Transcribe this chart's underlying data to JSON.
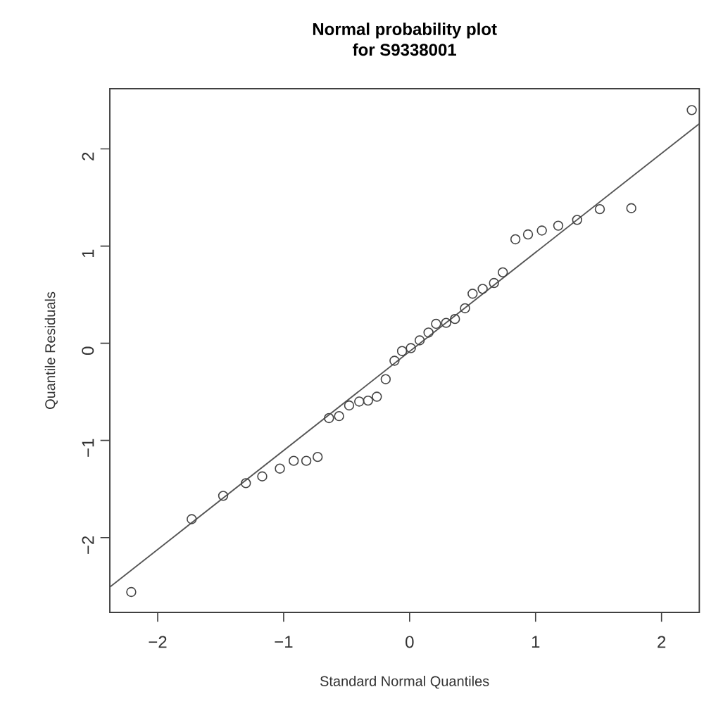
{
  "chart_data": {
    "type": "scatter",
    "title": "Normal probability plot",
    "subtitle": "for S9338001",
    "xlabel": "Standard Normal Quantiles",
    "ylabel": "Quantile Residuals",
    "xlim": [
      -2.38,
      2.3
    ],
    "ylim": [
      -2.77,
      2.62
    ],
    "xticks": [
      {
        "value": -2,
        "label": "−2"
      },
      {
        "value": -1,
        "label": "−1"
      },
      0,
      1,
      2
    ],
    "yticks": [
      {
        "value": -2,
        "label": "−2"
      },
      {
        "value": -1,
        "label": "−1"
      },
      0,
      1,
      2
    ],
    "series": [
      {
        "marker": "circle",
        "color": "#444444",
        "x": [
          -2.21,
          -1.73,
          -1.48,
          -1.3,
          -1.17,
          -1.03,
          -0.92,
          -0.82,
          -0.73,
          -0.64,
          -0.56,
          -0.48,
          -0.4,
          -0.33,
          -0.26,
          -0.19,
          -0.12,
          -0.06,
          0.01,
          0.08,
          0.15,
          0.21,
          0.29,
          0.36,
          0.44,
          0.5,
          0.58,
          0.67,
          0.74,
          0.84,
          0.94,
          1.05,
          1.18,
          1.33,
          1.51,
          1.76,
          2.24
        ],
        "values": [
          -2.56,
          -1.81,
          -1.57,
          -1.44,
          -1.37,
          -1.29,
          -1.21,
          -1.21,
          -1.17,
          -0.77,
          -0.75,
          -0.64,
          -0.6,
          -0.59,
          -0.55,
          -0.37,
          -0.18,
          -0.08,
          -0.05,
          0.03,
          0.11,
          0.2,
          0.21,
          0.25,
          0.36,
          0.51,
          0.56,
          0.62,
          0.73,
          1.07,
          1.12,
          1.16,
          1.21,
          1.27,
          1.38,
          1.39,
          2.4
        ]
      },
      {
        "type": "line",
        "line_style": "solid",
        "color": "#555555",
        "x": [
          -2.38,
          2.3
        ],
        "values": [
          -2.51,
          2.26
        ]
      }
    ]
  }
}
